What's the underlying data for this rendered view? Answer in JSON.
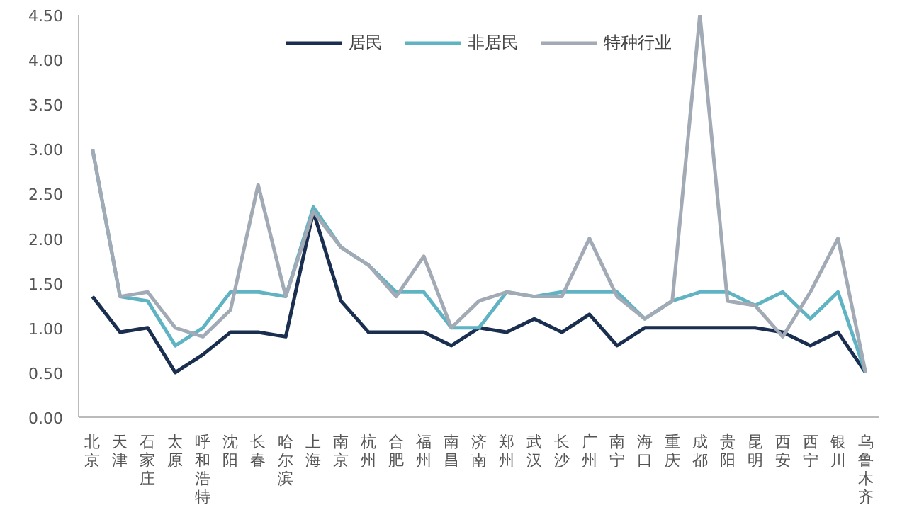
{
  "chart_data": {
    "type": "line",
    "categories": [
      "北京",
      "天津",
      "石家庄",
      "太原",
      "呼和浩特",
      "沈阳",
      "长春",
      "哈尔滨",
      "上海",
      "南京",
      "杭州",
      "合肥",
      "福州",
      "南昌",
      "济南",
      "郑州",
      "武汉",
      "长沙",
      "广州",
      "南宁",
      "海口",
      "重庆",
      "成都",
      "贵阳",
      "昆明",
      "西安",
      "西宁",
      "银川",
      "乌鲁木齐"
    ],
    "series": [
      {
        "name": "居民",
        "color": "#1a2e4f",
        "values": [
          1.35,
          0.95,
          1.0,
          0.5,
          0.7,
          0.95,
          0.95,
          0.9,
          2.3,
          1.3,
          0.95,
          0.95,
          0.95,
          0.8,
          1.0,
          0.95,
          1.1,
          0.95,
          1.15,
          0.8,
          1.0,
          1.0,
          1.0,
          1.0,
          1.0,
          0.95,
          0.8,
          0.95,
          0.5
        ]
      },
      {
        "name": "非居民",
        "color": "#5fb3c3",
        "values": [
          3.0,
          1.35,
          1.3,
          0.8,
          1.0,
          1.4,
          1.4,
          1.35,
          2.35,
          1.9,
          1.7,
          1.4,
          1.4,
          1.0,
          1.0,
          1.4,
          1.35,
          1.4,
          1.4,
          1.4,
          1.1,
          1.3,
          1.4,
          1.4,
          1.25,
          1.4,
          1.1,
          1.4,
          0.5
        ]
      },
      {
        "name": "特种行业",
        "color": "#a1aab5",
        "values": [
          3.0,
          1.35,
          1.4,
          1.0,
          0.9,
          1.2,
          2.6,
          1.35,
          2.3,
          1.9,
          1.7,
          1.35,
          1.8,
          1.0,
          1.3,
          1.4,
          1.35,
          1.35,
          2.0,
          1.35,
          1.1,
          1.3,
          4.5,
          1.3,
          1.25,
          0.9,
          1.4,
          2.0,
          0.5
        ]
      }
    ],
    "ylim": [
      0,
      4.5
    ],
    "yticks": [
      {
        "value": 0,
        "label": "0.00"
      },
      {
        "value": 0.5,
        "label": "0.50"
      },
      {
        "value": 1,
        "label": "1.00"
      },
      {
        "value": 1.5,
        "label": "1.50"
      },
      {
        "value": 2,
        "label": "2.00"
      },
      {
        "value": 2.5,
        "label": "2.50"
      },
      {
        "value": 3,
        "label": "3.00"
      },
      {
        "value": 3.5,
        "label": "3.50"
      },
      {
        "value": 4,
        "label": "4.00"
      },
      {
        "value": 4.5,
        "label": "4.50"
      }
    ],
    "grid": false,
    "legend": "top",
    "line_style": "solid"
  }
}
